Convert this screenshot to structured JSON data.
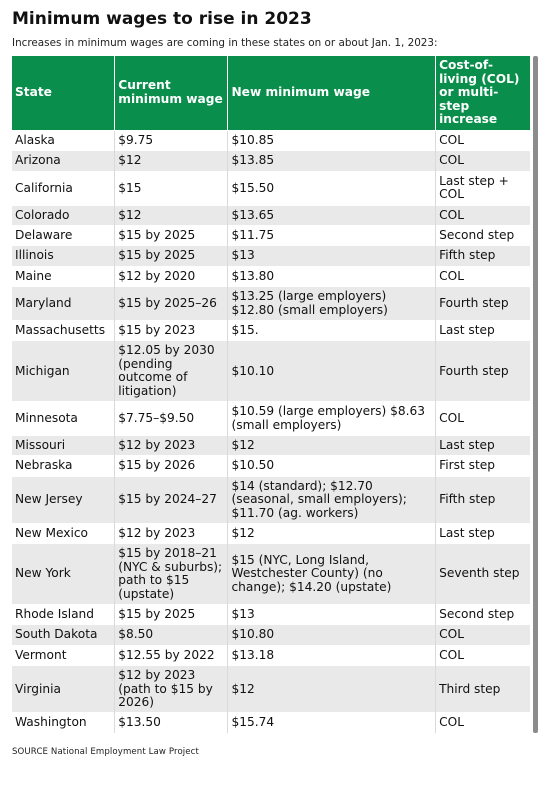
{
  "title": "Minimum wages to rise in 2023",
  "subtitle": "Increases in minimum wages are coming in these states on or about Jan. 1, 2023:",
  "colors": {
    "header_bg": "#098e4c",
    "header_text": "#ffffff",
    "stripe": "#e9e9e9"
  },
  "columns": [
    "State",
    "Current minimum wage",
    "New minimum wage",
    "Cost-of-living (COL) or multi-step increase"
  ],
  "rows": [
    [
      "Alaska",
      "$9.75",
      "$10.85",
      "COL"
    ],
    [
      "Arizona",
      "$12",
      "$13.85",
      "COL"
    ],
    [
      "California",
      "$15",
      "$15.50",
      "Last step + COL"
    ],
    [
      "Colorado",
      "$12",
      "$13.65",
      "COL"
    ],
    [
      "Delaware",
      "$15 by 2025",
      "$11.75",
      "Second step"
    ],
    [
      "Illinois",
      "$15 by 2025",
      "$13",
      "Fifth step"
    ],
    [
      "Maine",
      "$12 by 2020",
      "$13.80",
      "COL"
    ],
    [
      "Maryland",
      "$15 by 2025–26",
      "$13.25 (large employers) $12.80 (small employers)",
      "Fourth step"
    ],
    [
      "Massachusetts",
      "$15 by 2023",
      "$15.",
      "Last step"
    ],
    [
      "Michigan",
      "$12.05 by 2030 (pending outcome of litigation)",
      "$10.10",
      "Fourth step"
    ],
    [
      "Minnesota",
      "$7.75–$9.50",
      "$10.59 (large employers) $8.63 (small employers)",
      "COL"
    ],
    [
      "Missouri",
      "$12 by 2023",
      "$12",
      "Last step"
    ],
    [
      "Nebraska",
      "$15 by 2026",
      "$10.50",
      "First step"
    ],
    [
      "New Jersey",
      "$15 by 2024–27",
      "$14 (standard); $12.70 (seasonal, small employers); $11.70 (ag. workers)",
      "Fifth step"
    ],
    [
      "New Mexico",
      "$12 by 2023",
      "$12",
      "Last step"
    ],
    [
      "New York",
      "$15 by 2018–21 (NYC & suburbs); path to $15 (upstate)",
      "$15 (NYC, Long Island, Westchester County) (no change); $14.20 (upstate)",
      "Seventh step"
    ],
    [
      "Rhode Island",
      "$15 by 2025",
      "$13",
      "Second step"
    ],
    [
      "South Dakota",
      "$8.50",
      "$10.80",
      "COL"
    ],
    [
      "Vermont",
      "$12.55 by 2022",
      "$13.18",
      "COL"
    ],
    [
      "Virginia",
      "$12 by 2023 (path to $15 by 2026)",
      "$12",
      "Third step"
    ],
    [
      "Washington",
      "$13.50",
      "$15.74",
      "COL"
    ]
  ],
  "source": "SOURCE National Employment Law Project"
}
